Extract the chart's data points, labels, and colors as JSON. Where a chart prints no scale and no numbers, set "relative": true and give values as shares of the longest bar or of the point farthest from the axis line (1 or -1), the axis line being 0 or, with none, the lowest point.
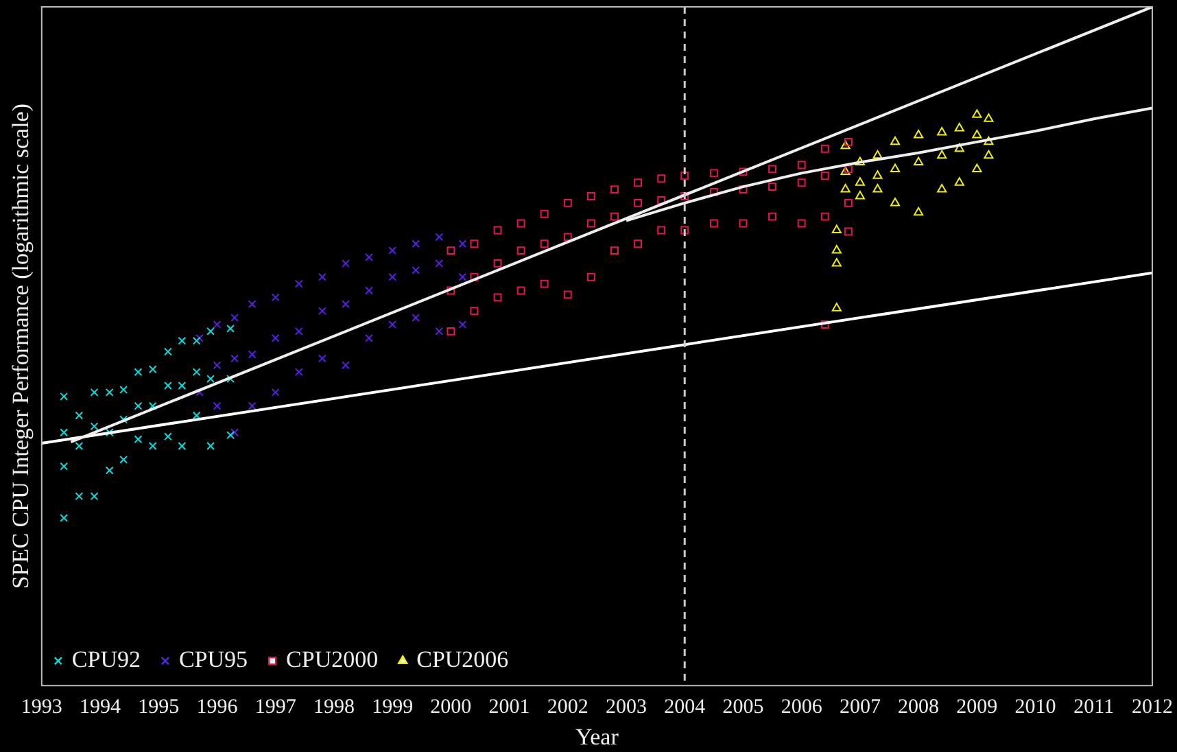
{
  "chart_data": {
    "type": "scatter",
    "xlabel": "Year",
    "ylabel": "SPEC CPU Integer Performance (logarithmic scale)",
    "relative": true,
    "xlim": [
      1993,
      2012
    ],
    "xticks": [
      1993,
      1994,
      1995,
      1996,
      1997,
      1998,
      1999,
      2000,
      2001,
      2002,
      2003,
      2004,
      2005,
      2006,
      2007,
      2008,
      2009,
      2010,
      2011,
      2012
    ],
    "tick_labels": "x",
    "legend": "bottom left",
    "grid": false,
    "ref_lines": [
      {
        "axis": "x",
        "value": 2004,
        "color": "#cccccc",
        "line_style": "dashed"
      }
    ],
    "series": [
      {
        "name": "CPU92",
        "color": "#00e0e0",
        "marker": "cross",
        "x": [
          1993.38,
          1993.38,
          1993.38,
          1993.38,
          1993.64,
          1993.64,
          1993.64,
          1993.9,
          1993.9,
          1993.9,
          1994.16,
          1994.16,
          1994.16,
          1994.4,
          1994.4,
          1994.4,
          1994.65,
          1994.65,
          1994.65,
          1994.9,
          1994.9,
          1994.9,
          1995.16,
          1995.16,
          1995.16,
          1995.4,
          1995.4,
          1995.4,
          1995.65,
          1995.65,
          1995.65,
          1995.89,
          1995.89,
          1995.89,
          1996.23,
          1996.23,
          1996.23
        ],
        "values": [
          0.426,
          0.373,
          0.323,
          0.247,
          0.398,
          0.353,
          0.279,
          0.432,
          0.382,
          0.279,
          0.432,
          0.373,
          0.317,
          0.436,
          0.392,
          0.333,
          0.462,
          0.412,
          0.363,
          0.466,
          0.412,
          0.353,
          0.492,
          0.442,
          0.367,
          0.508,
          0.442,
          0.353,
          0.508,
          0.462,
          0.398,
          0.522,
          0.452,
          0.353,
          0.526,
          0.452,
          0.369
        ]
      },
      {
        "name": "CPU95",
        "color": "#5a1ee6",
        "marker": "cross",
        "x": [
          1995.7,
          1995.7,
          1996.0,
          1996.0,
          1996.0,
          1996.3,
          1996.3,
          1996.3,
          1996.6,
          1996.6,
          1996.6,
          1997.0,
          1997.0,
          1997.0,
          1997.4,
          1997.4,
          1997.4,
          1997.8,
          1997.8,
          1997.8,
          1998.2,
          1998.2,
          1998.2,
          1998.6,
          1998.6,
          1998.6,
          1999.0,
          1999.0,
          1999.0,
          1999.4,
          1999.4,
          1999.4,
          1999.8,
          1999.8,
          1999.8,
          2000.2,
          2000.2,
          2000.2
        ],
        "values": [
          0.512,
          0.432,
          0.532,
          0.472,
          0.412,
          0.542,
          0.482,
          0.373,
          0.562,
          0.488,
          0.412,
          0.572,
          0.512,
          0.432,
          0.592,
          0.522,
          0.462,
          0.602,
          0.552,
          0.482,
          0.622,
          0.562,
          0.472,
          0.631,
          0.582,
          0.512,
          0.641,
          0.602,
          0.532,
          0.651,
          0.612,
          0.542,
          0.661,
          0.622,
          0.522,
          0.651,
          0.602,
          0.532
        ]
      },
      {
        "name": "CPU2000",
        "color": "#e8105a",
        "marker": "square",
        "x": [
          2000.0,
          2000.0,
          2000.0,
          2000.4,
          2000.4,
          2000.4,
          2000.8,
          2000.8,
          2000.8,
          2001.2,
          2001.2,
          2001.2,
          2001.6,
          2001.6,
          2001.6,
          2002.0,
          2002.0,
          2002.0,
          2002.4,
          2002.4,
          2002.4,
          2002.8,
          2002.8,
          2002.8,
          2003.2,
          2003.2,
          2003.2,
          2003.6,
          2003.6,
          2003.6,
          2004.0,
          2004.0,
          2004.0,
          2004.5,
          2004.5,
          2004.5,
          2005.0,
          2005.0,
          2005.0,
          2005.5,
          2005.5,
          2005.5,
          2006.0,
          2006.0,
          2006.0,
          2006.4,
          2006.4,
          2006.4,
          2006.4,
          2006.8,
          2006.8,
          2006.8,
          2006.8
        ],
        "values": [
          0.641,
          0.582,
          0.522,
          0.651,
          0.602,
          0.552,
          0.671,
          0.622,
          0.572,
          0.681,
          0.641,
          0.582,
          0.695,
          0.651,
          0.592,
          0.711,
          0.661,
          0.576,
          0.721,
          0.681,
          0.602,
          0.731,
          0.691,
          0.641,
          0.741,
          0.711,
          0.651,
          0.747,
          0.715,
          0.671,
          0.751,
          0.721,
          0.671,
          0.755,
          0.727,
          0.681,
          0.757,
          0.731,
          0.681,
          0.761,
          0.735,
          0.691,
          0.767,
          0.741,
          0.681,
          0.791,
          0.751,
          0.691,
          0.532,
          0.801,
          0.761,
          0.711,
          0.669
        ]
      },
      {
        "name": "CPU2006",
        "color": "#f0f000",
        "marker": "triangle",
        "x": [
          2006.6,
          2006.6,
          2006.6,
          2006.6,
          2006.75,
          2006.75,
          2006.75,
          2007.0,
          2007.0,
          2007.0,
          2007.3,
          2007.3,
          2007.3,
          2007.6,
          2007.6,
          2007.6,
          2008.0,
          2008.0,
          2008.0,
          2008.4,
          2008.4,
          2008.4,
          2008.7,
          2008.7,
          2008.7,
          2009.0,
          2009.0,
          2009.0,
          2009.2,
          2009.2,
          2009.2
        ],
        "values": [
          0.671,
          0.641,
          0.622,
          0.556,
          0.795,
          0.757,
          0.731,
          0.771,
          0.741,
          0.721,
          0.781,
          0.751,
          0.731,
          0.801,
          0.761,
          0.711,
          0.811,
          0.771,
          0.697,
          0.815,
          0.781,
          0.731,
          0.821,
          0.791,
          0.741,
          0.841,
          0.811,
          0.761,
          0.835,
          0.801,
          0.781
        ]
      },
      {
        "type": "line",
        "color": "#eeeeee",
        "marker": "none",
        "x": [
          1993.5,
          2012
        ],
        "values": [
          0.359,
          1.0
        ]
      },
      {
        "type": "line",
        "color": "#eeeeee",
        "marker": "none",
        "x": [
          2003,
          2004,
          2005,
          2006,
          2007,
          2008,
          2009,
          2010,
          2011,
          2012
        ],
        "values": [
          0.685,
          0.711,
          0.735,
          0.755,
          0.771,
          0.785,
          0.801,
          0.817,
          0.835,
          0.851
        ]
      },
      {
        "type": "line",
        "color": "#ffffff",
        "marker": "none",
        "x": [
          1993,
          2012
        ],
        "values": [
          0.357,
          0.608
        ]
      }
    ]
  }
}
